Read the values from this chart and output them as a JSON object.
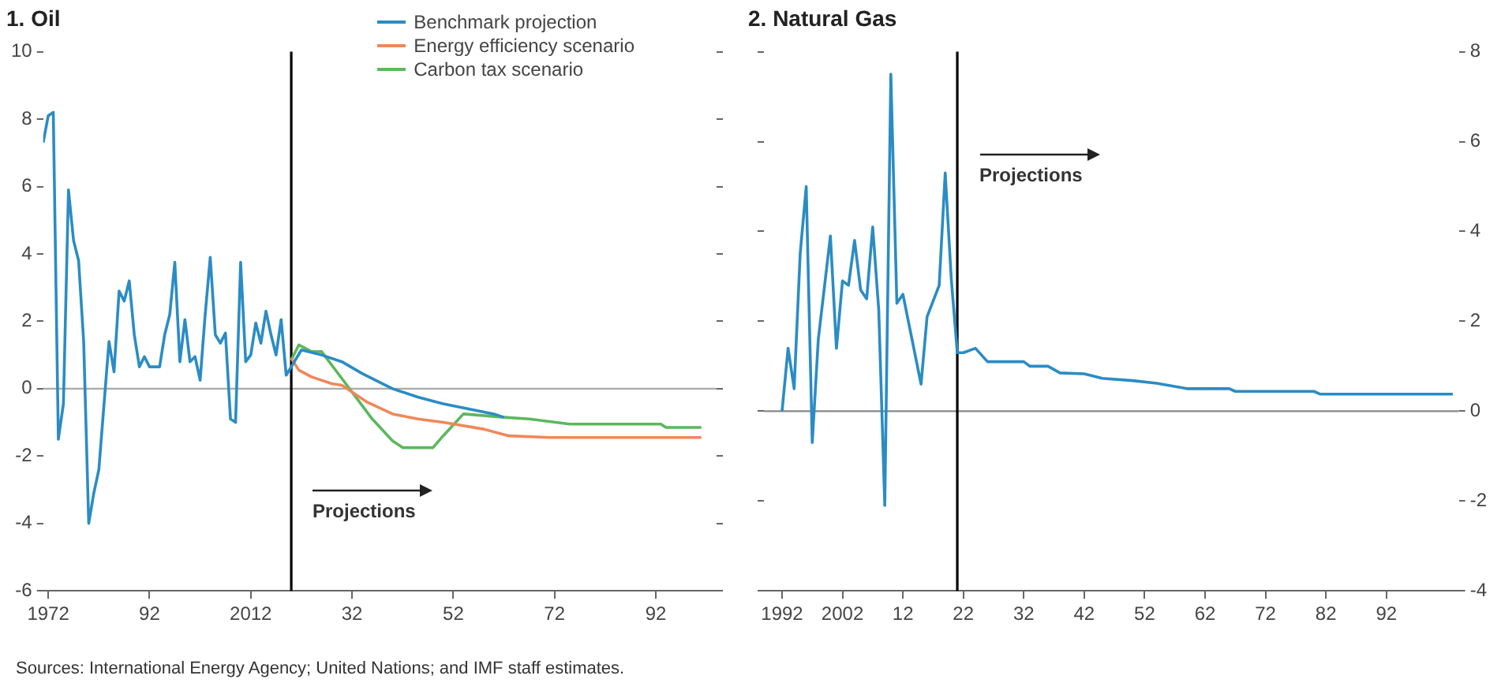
{
  "chart_data": [
    {
      "type": "line",
      "title": "1. Oil",
      "xlim": [
        1971,
        2104
      ],
      "xticks": [
        1972,
        {
          "value": 1992,
          "label": "92"
        },
        2012,
        {
          "value": 2032,
          "label": "32"
        },
        {
          "value": 2052,
          "label": "52"
        },
        {
          "value": 2072,
          "label": "72"
        },
        {
          "value": 2092,
          "label": "92"
        }
      ],
      "ylim": [
        -6,
        10
      ],
      "yticks": [
        -6,
        -4,
        -2,
        0,
        2,
        4,
        6,
        8,
        10
      ],
      "legend": "top right",
      "series": [
        {
          "name": "Benchmark projection",
          "color": "#2b8cc4",
          "x": [
            1971,
            1972,
            1973,
            1974,
            1975,
            1976,
            1977,
            1978,
            1979,
            1980,
            1981,
            1982,
            1984,
            1985,
            1986,
            1987,
            1988,
            1989,
            1990,
            1991,
            1992,
            1994,
            1995,
            1996,
            1997,
            1998,
            1999,
            2000,
            2001,
            2002,
            2003,
            2004,
            2005,
            2006,
            2007,
            2008,
            2009,
            2010,
            2011,
            2012,
            2013,
            2014,
            2015,
            2016,
            2017,
            2018,
            2019,
            2020,
            2022,
            2026,
            2030,
            2034,
            2040,
            2045,
            2050,
            2055,
            2060,
            2062
          ],
          "values": [
            7.3,
            8.1,
            8.2,
            -1.5,
            -0.45,
            5.9,
            4.4,
            3.8,
            1.4,
            -4.0,
            -3.1,
            -2.4,
            1.4,
            0.5,
            2.9,
            2.6,
            3.2,
            1.6,
            0.65,
            0.95,
            0.65,
            0.65,
            1.6,
            2.2,
            3.75,
            0.8,
            2.05,
            0.8,
            0.95,
            0.25,
            2.2,
            3.9,
            1.6,
            1.35,
            1.65,
            -0.9,
            -1.0,
            3.75,
            0.8,
            1.0,
            1.95,
            1.35,
            2.3,
            1.6,
            1.0,
            2.05,
            0.4,
            0.65,
            1.15,
            1.0,
            0.8,
            0.45,
            0.0,
            -0.25,
            -0.45,
            -0.6,
            -0.75,
            -0.85
          ]
        },
        {
          "name": "Energy efficiency scenario",
          "color": "#f0875a",
          "x": [
            2020,
            2021.5,
            2024,
            2028,
            2030,
            2035,
            2040,
            2045,
            2050,
            2058,
            2063,
            2071,
            2101
          ],
          "values": [
            0.9,
            0.55,
            0.35,
            0.15,
            0.1,
            -0.4,
            -0.75,
            -0.9,
            -1.0,
            -1.2,
            -1.4,
            -1.45,
            -1.45
          ]
        },
        {
          "name": "Carbon tax scenario",
          "color": "#5cb85c",
          "x": [
            2020,
            2021.5,
            2024,
            2026,
            2030,
            2033,
            2036,
            2040,
            2042,
            2048,
            2050,
            2054,
            2062,
            2067,
            2075,
            2093,
            2094,
            2101
          ],
          "values": [
            0.85,
            1.3,
            1.1,
            1.1,
            0.3,
            -0.3,
            -0.9,
            -1.55,
            -1.75,
            -1.75,
            -1.4,
            -0.75,
            -0.85,
            -0.9,
            -1.05,
            -1.05,
            -1.15,
            -1.15
          ]
        }
      ],
      "ref_lines": [
        {
          "axis": "y",
          "value": 0,
          "color": "#aaaaaa"
        },
        {
          "axis": "x",
          "value": 2020,
          "color": "#000000"
        }
      ],
      "annotations": [
        "Projections",
        "Sources: International Energy Agency; United Nations; and IMF staff estimates."
      ]
    },
    {
      "type": "line",
      "title": "2. Natural Gas",
      "xlim": [
        1989,
        2104
      ],
      "xticks": [
        1992,
        2002,
        {
          "value": 2012,
          "label": "12"
        },
        {
          "value": 2022,
          "label": "22"
        },
        {
          "value": 2032,
          "label": "32"
        },
        {
          "value": 2042,
          "label": "42"
        },
        {
          "value": 2052,
          "label": "52"
        },
        {
          "value": 2062,
          "label": "62"
        },
        {
          "value": 2072,
          "label": "72"
        },
        {
          "value": 2082,
          "label": "82"
        },
        {
          "value": 2092,
          "label": "92"
        }
      ],
      "y2lim": [
        -4,
        8
      ],
      "y2ticks": [
        -4,
        -2,
        0,
        2,
        4,
        6,
        8
      ],
      "series": [
        {
          "color": "#2b8cc4",
          "axis": "y2",
          "x": [
            1992,
            1993,
            1994,
            1995,
            1996,
            1997,
            1998,
            2000,
            2001,
            2002,
            2003,
            2004,
            2005,
            2006,
            2007,
            2008,
            2009,
            2010,
            2011,
            2012,
            2015,
            2016,
            2018,
            2019,
            2020,
            2021,
            2022,
            2024,
            2026,
            2032,
            2033,
            2036,
            2038,
            2042,
            2045,
            2050,
            2054,
            2059,
            2066,
            2067,
            2080,
            2081,
            2103
          ],
          "values": [
            0,
            1.4,
            0.5,
            3.5,
            5.0,
            -0.7,
            1.6,
            3.9,
            1.4,
            2.9,
            2.8,
            3.8,
            2.7,
            2.5,
            4.1,
            2.25,
            -2.1,
            7.5,
            2.4,
            2.6,
            0.6,
            2.1,
            2.8,
            5.3,
            2.95,
            1.3,
            1.3,
            1.4,
            1.1,
            1.1,
            1.0,
            1.0,
            0.85,
            0.83,
            0.73,
            0.68,
            0.62,
            0.5,
            0.5,
            0.44,
            0.44,
            0.38,
            0.38
          ]
        }
      ],
      "ref_lines": [
        {
          "axis": "y2",
          "value": 0,
          "color": "#888888"
        },
        {
          "axis": "x",
          "value": 2021,
          "color": "#000000"
        }
      ],
      "annotations": [
        "Projections"
      ]
    }
  ]
}
